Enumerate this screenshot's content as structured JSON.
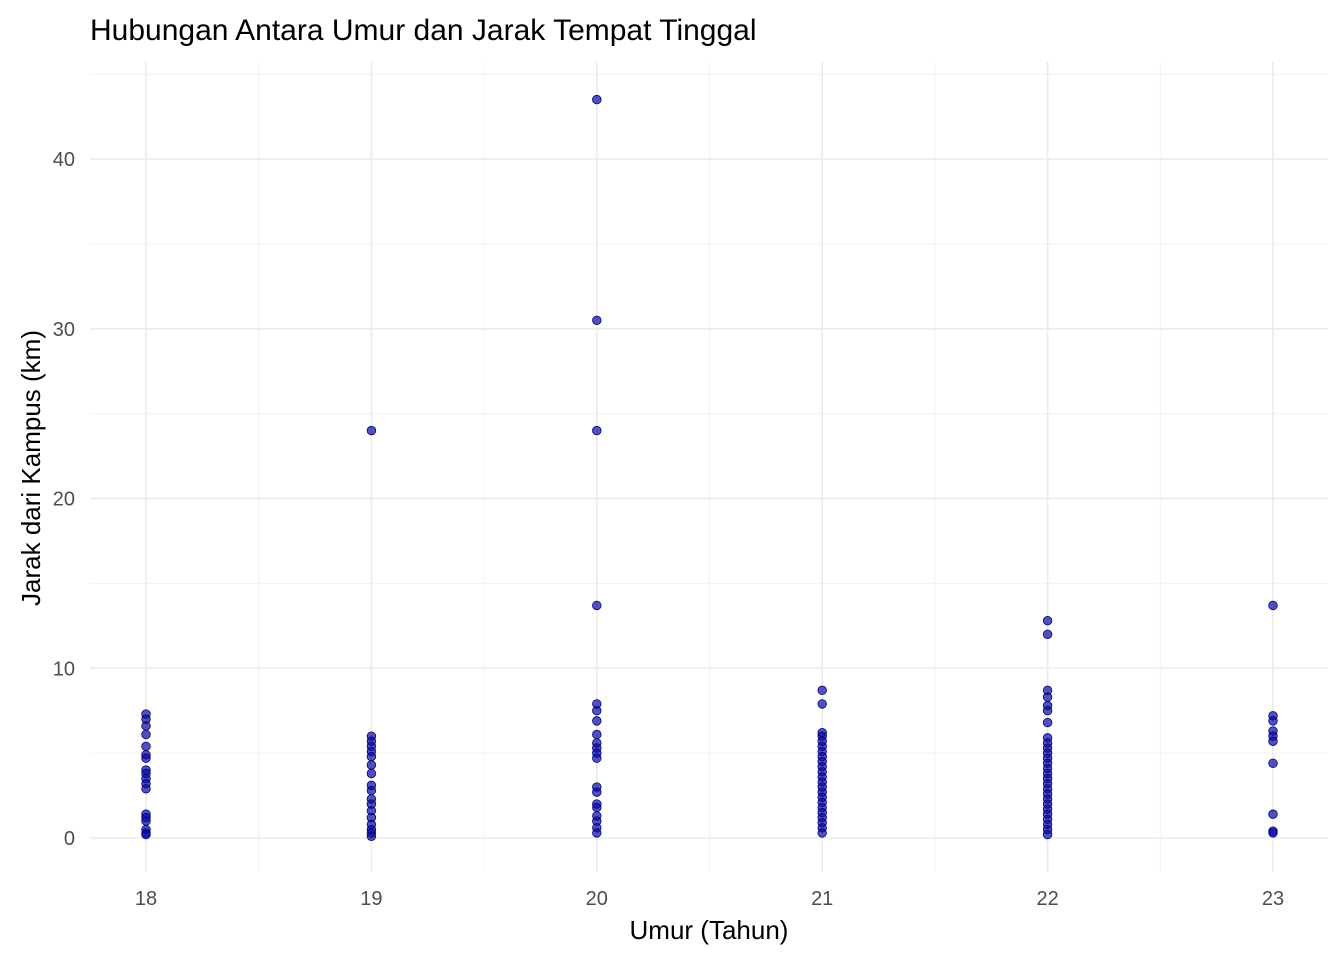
{
  "chart_data": {
    "type": "scatter",
    "title": "Hubungan Antara Umur dan Jarak Tempat Tinggal",
    "xlabel": "Umur (Tahun)",
    "ylabel": "Jarak dari Kampus (km)",
    "xlim": [
      17.75,
      23.25
    ],
    "ylim": [
      -2,
      45.5
    ],
    "x_ticks": [
      18,
      19,
      20,
      21,
      22,
      23
    ],
    "y_ticks": [
      0,
      10,
      20,
      30,
      40
    ],
    "grid": true,
    "legend": "none",
    "point_color": "#0a0a9e",
    "series": [
      {
        "points": [
          [
            18,
            7.3
          ],
          [
            18,
            7.0
          ],
          [
            18,
            6.6
          ],
          [
            18,
            6.1
          ],
          [
            18,
            5.4
          ],
          [
            18,
            4.9
          ],
          [
            18,
            4.7
          ],
          [
            18,
            4.0
          ],
          [
            18,
            3.8
          ],
          [
            18,
            3.5
          ],
          [
            18,
            3.2
          ],
          [
            18,
            2.9
          ],
          [
            18,
            1.4
          ],
          [
            18,
            1.2
          ],
          [
            18,
            1.0
          ],
          [
            18,
            0.5
          ],
          [
            18,
            0.3
          ],
          [
            18,
            0.2
          ],
          [
            19,
            24.0
          ],
          [
            19,
            6.0
          ],
          [
            19,
            5.7
          ],
          [
            19,
            5.4
          ],
          [
            19,
            5.1
          ],
          [
            19,
            4.8
          ],
          [
            19,
            4.3
          ],
          [
            19,
            3.8
          ],
          [
            19,
            3.1
          ],
          [
            19,
            2.8
          ],
          [
            19,
            2.3
          ],
          [
            19,
            2.0
          ],
          [
            19,
            1.6
          ],
          [
            19,
            1.2
          ],
          [
            19,
            0.8
          ],
          [
            19,
            0.5
          ],
          [
            19,
            0.3
          ],
          [
            19,
            0.1
          ],
          [
            20,
            43.5
          ],
          [
            20,
            30.5
          ],
          [
            20,
            24.0
          ],
          [
            20,
            13.7
          ],
          [
            20,
            7.9
          ],
          [
            20,
            7.5
          ],
          [
            20,
            6.9
          ],
          [
            20,
            6.1
          ],
          [
            20,
            5.6
          ],
          [
            20,
            5.3
          ],
          [
            20,
            5.0
          ],
          [
            20,
            4.7
          ],
          [
            20,
            3.0
          ],
          [
            20,
            2.7
          ],
          [
            20,
            2.0
          ],
          [
            20,
            1.8
          ],
          [
            20,
            1.3
          ],
          [
            20,
            1.0
          ],
          [
            20,
            0.6
          ],
          [
            20,
            0.3
          ],
          [
            21,
            8.7
          ],
          [
            21,
            7.9
          ],
          [
            21,
            6.2
          ],
          [
            21,
            6.0
          ],
          [
            21,
            5.7
          ],
          [
            21,
            5.4
          ],
          [
            21,
            5.1
          ],
          [
            21,
            4.8
          ],
          [
            21,
            4.5
          ],
          [
            21,
            4.2
          ],
          [
            21,
            3.9
          ],
          [
            21,
            3.6
          ],
          [
            21,
            3.3
          ],
          [
            21,
            3.0
          ],
          [
            21,
            2.7
          ],
          [
            21,
            2.4
          ],
          [
            21,
            2.1
          ],
          [
            21,
            1.8
          ],
          [
            21,
            1.5
          ],
          [
            21,
            1.2
          ],
          [
            21,
            0.9
          ],
          [
            21,
            0.6
          ],
          [
            21,
            0.3
          ],
          [
            22,
            12.8
          ],
          [
            22,
            12.0
          ],
          [
            22,
            8.7
          ],
          [
            22,
            8.3
          ],
          [
            22,
            7.8
          ],
          [
            22,
            7.5
          ],
          [
            22,
            6.8
          ],
          [
            22,
            5.9
          ],
          [
            22,
            5.6
          ],
          [
            22,
            5.3
          ],
          [
            22,
            5.0
          ],
          [
            22,
            4.7
          ],
          [
            22,
            4.4
          ],
          [
            22,
            4.1
          ],
          [
            22,
            3.8
          ],
          [
            22,
            3.5
          ],
          [
            22,
            3.2
          ],
          [
            22,
            2.9
          ],
          [
            22,
            2.6
          ],
          [
            22,
            2.3
          ],
          [
            22,
            2.0
          ],
          [
            22,
            1.7
          ],
          [
            22,
            1.4
          ],
          [
            22,
            1.1
          ],
          [
            22,
            0.8
          ],
          [
            22,
            0.5
          ],
          [
            22,
            0.2
          ],
          [
            23,
            13.7
          ],
          [
            23,
            7.2
          ],
          [
            23,
            6.9
          ],
          [
            23,
            6.3
          ],
          [
            23,
            6.0
          ],
          [
            23,
            5.7
          ],
          [
            23,
            4.4
          ],
          [
            23,
            1.4
          ],
          [
            23,
            0.4
          ],
          [
            23,
            0.3
          ]
        ]
      }
    ]
  }
}
